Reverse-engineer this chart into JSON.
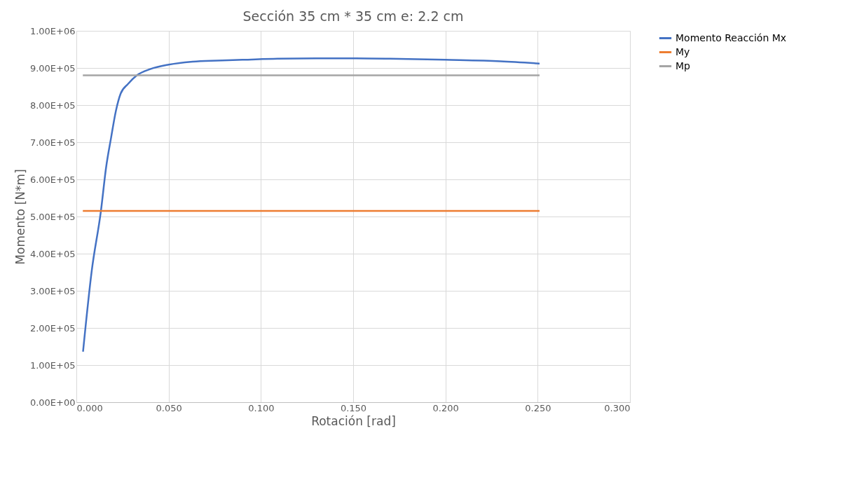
{
  "chart_data": {
    "type": "line",
    "title": "Sección 35 cm * 35 cm e: 2.2 cm",
    "xlabel": "Rotación [rad]",
    "ylabel": "Momento [N*m]",
    "xlim": [
      0,
      0.3
    ],
    "ylim": [
      0,
      1000000
    ],
    "xticks": [
      {
        "value": 0,
        "label": "0.000"
      },
      {
        "value": 0.05,
        "label": "0.050"
      },
      {
        "value": 0.1,
        "label": "0.100"
      },
      {
        "value": 0.15,
        "label": "0.150"
      },
      {
        "value": 0.2,
        "label": "0.200"
      },
      {
        "value": 0.25,
        "label": "0.250"
      },
      {
        "value": 0.3,
        "label": "0.300"
      }
    ],
    "yticks": [
      {
        "value": 0,
        "label": "0.00E+00"
      },
      {
        "value": 100000,
        "label": "1.00E+05"
      },
      {
        "value": 200000,
        "label": "2.00E+05"
      },
      {
        "value": 300000,
        "label": "3.00E+05"
      },
      {
        "value": 400000,
        "label": "4.00E+05"
      },
      {
        "value": 500000,
        "label": "5.00E+05"
      },
      {
        "value": 600000,
        "label": "6.00E+05"
      },
      {
        "value": 700000,
        "label": "7.00E+05"
      },
      {
        "value": 800000,
        "label": "8.00E+05"
      },
      {
        "value": 900000,
        "label": "9.00E+05"
      },
      {
        "value": 1000000,
        "label": "1.00E+06"
      }
    ],
    "grid": true,
    "legend": "right",
    "marker": "none",
    "line_style": "solid",
    "series": [
      {
        "name": "Momento Reacción Mx",
        "color": "#4472c4",
        "x": [
          0.0036,
          0.0083,
          0.0133,
          0.0161,
          0.0188,
          0.0214,
          0.024,
          0.028,
          0.033,
          0.04,
          0.05,
          0.063,
          0.076,
          0.09,
          0.109,
          0.13,
          0.15,
          0.17,
          0.2,
          0.23,
          0.251
        ],
        "values": [
          136000,
          353000,
          515000,
          632000,
          712000,
          784000,
          831000,
          857000,
          881000,
          897000,
          909000,
          917000,
          920000,
          922000,
          925000,
          926000,
          926000,
          925000,
          922000,
          918000,
          912000
        ]
      },
      {
        "name": "My",
        "color": "#ed7d31",
        "x": [
          0.0035,
          0.251
        ],
        "values": [
          515000,
          515000
        ]
      },
      {
        "name": "Mp",
        "color": "#a5a5a5",
        "x": [
          0.0035,
          0.251
        ],
        "values": [
          880000,
          880000
        ]
      }
    ]
  }
}
